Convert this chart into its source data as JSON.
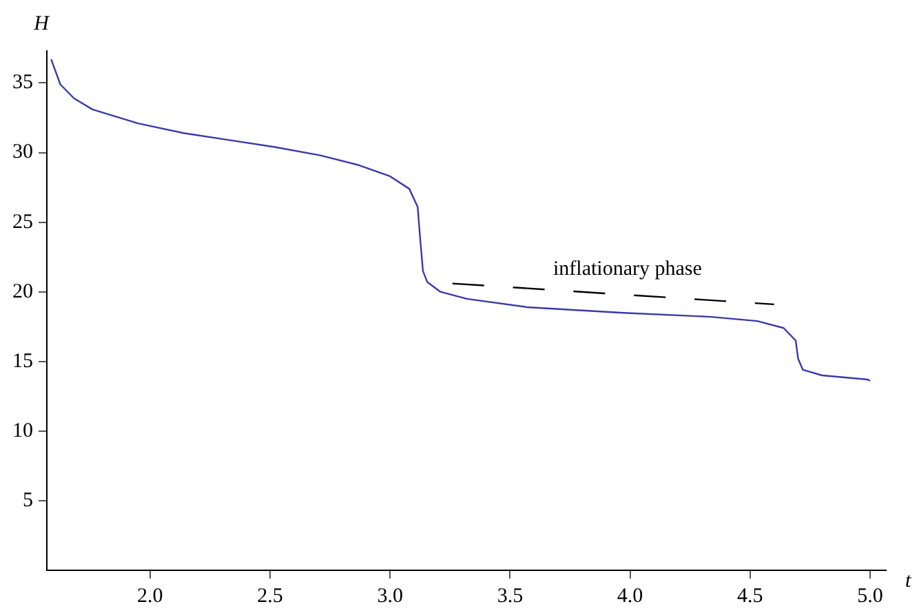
{
  "chart_data": {
    "type": "line",
    "xlabel": "t",
    "ylabel": "H",
    "xlim": [
      1.57,
      5.066
    ],
    "ylim": [
      0,
      37.3
    ],
    "xticks": [
      {
        "value": 2,
        "label": "2.0"
      },
      {
        "value": 2.5,
        "label": "2.5"
      },
      {
        "value": 3,
        "label": "3.0"
      },
      {
        "value": 3.5,
        "label": "3.5"
      },
      {
        "value": 4,
        "label": "4.0"
      },
      {
        "value": 4.5,
        "label": "4.5"
      },
      {
        "value": 5,
        "label": "5.0"
      }
    ],
    "yticks": [
      5,
      10,
      15,
      20,
      25,
      30,
      35
    ],
    "grid": false,
    "legend": false,
    "marker": "none",
    "series": [
      {
        "color": "#3a3aa8",
        "line_style": "solid",
        "x": [
          1.588,
          1.626,
          1.683,
          1.76,
          1.95,
          2.14,
          2.33,
          2.52,
          2.71,
          2.87,
          3.0,
          3.08,
          3.115,
          3.125,
          3.137,
          3.155,
          3.21,
          3.32,
          3.57,
          3.96,
          4.34,
          4.53,
          4.64,
          4.69,
          4.7,
          4.72,
          4.8,
          4.99,
          5.0
        ],
        "values": [
          36.7,
          34.9,
          33.9,
          33.1,
          32.1,
          31.4,
          30.9,
          30.4,
          29.8,
          29.1,
          28.3,
          27.4,
          26.1,
          23.9,
          21.5,
          20.7,
          20.0,
          19.5,
          18.9,
          18.5,
          18.2,
          17.9,
          17.4,
          16.5,
          15.2,
          14.4,
          14.0,
          13.7,
          13.6
        ]
      },
      {
        "color": "#000000",
        "line_style": "dashed",
        "x": [
          3.26,
          4.6
        ],
        "values": [
          20.6,
          19.1
        ]
      }
    ],
    "annotations": [
      "inflationary phase"
    ]
  }
}
